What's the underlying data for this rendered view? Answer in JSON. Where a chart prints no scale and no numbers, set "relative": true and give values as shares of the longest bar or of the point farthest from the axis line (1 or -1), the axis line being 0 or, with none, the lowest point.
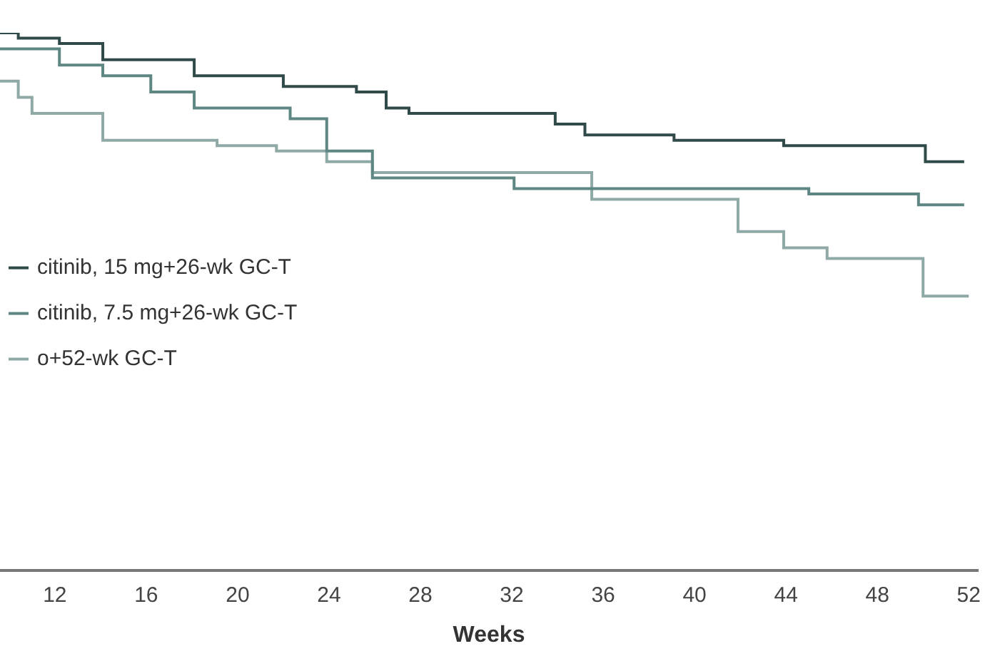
{
  "chart_data": {
    "type": "step",
    "relative": true,
    "xlabel": "Weeks",
    "xlim": [
      9.6,
      52.4
    ],
    "xticks": [
      12,
      16,
      20,
      24,
      28,
      32,
      36,
      40,
      44,
      48,
      52
    ],
    "legend": "bottom left",
    "grid": false,
    "marker": "none",
    "line_style": "solid",
    "series": [
      {
        "name": "citinib, 15 mg+26-wk GC-T",
        "color": "#2f4a48",
        "x": [
          9.6,
          10.4,
          12.2,
          14.1,
          17.5,
          18.1,
          22.0,
          25.2,
          26.5,
          27.5,
          33.9,
          35.2,
          39.1,
          41.4,
          43.9,
          50.1,
          51.8
        ],
        "values": [
          1.0,
          0.99,
          0.98,
          0.95,
          0.95,
          0.92,
          0.9,
          0.89,
          0.86,
          0.85,
          0.83,
          0.81,
          0.8,
          0.8,
          0.79,
          0.76,
          0.76
        ]
      },
      {
        "name": "citinib, 7.5 mg+26-wk GC-T",
        "color": "#5e8683",
        "x": [
          9.6,
          12.2,
          14.1,
          16.2,
          18.1,
          22.3,
          23.9,
          25.9,
          32.1,
          45.0,
          49.8,
          51.8
        ],
        "values": [
          0.97,
          0.94,
          0.92,
          0.89,
          0.86,
          0.84,
          0.78,
          0.73,
          0.71,
          0.7,
          0.68,
          0.68
        ]
      },
      {
        "name": "o+52-wk GC-T",
        "color": "#8fa9a6",
        "x": [
          9.6,
          10.4,
          11.0,
          14.1,
          19.1,
          21.7,
          23.9,
          25.9,
          35.5,
          41.9,
          43.9,
          45.8,
          50.0,
          52.0
        ],
        "values": [
          0.91,
          0.88,
          0.85,
          0.8,
          0.79,
          0.78,
          0.76,
          0.74,
          0.69,
          0.63,
          0.6,
          0.58,
          0.51,
          0.51
        ]
      }
    ]
  }
}
